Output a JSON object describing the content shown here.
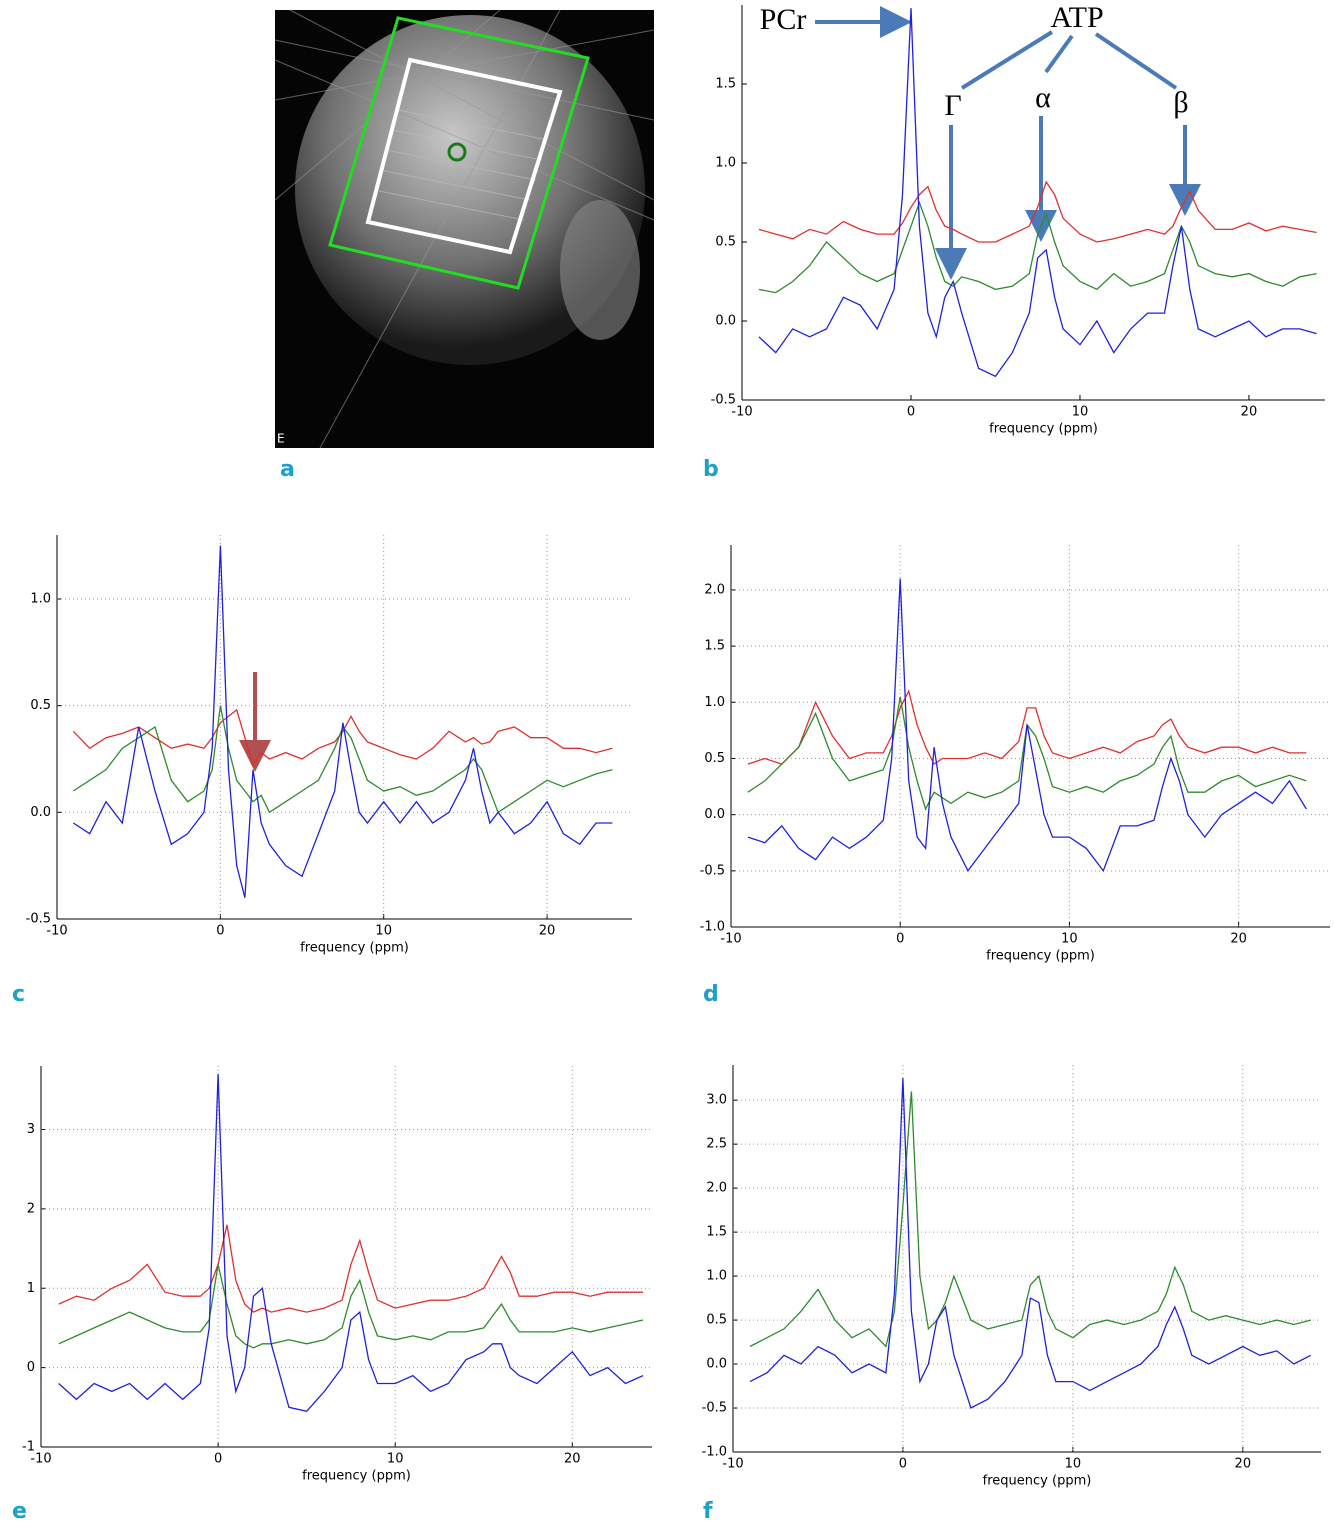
{
  "panel_labels": [
    "a",
    "b",
    "c",
    "d",
    "e",
    "f"
  ],
  "image_marker": "E",
  "chart_data": [
    {
      "type": "line",
      "xlabel": "frequency (ppm)",
      "xlim": [
        -10,
        24.5
      ],
      "ylim": [
        -0.5,
        2.0
      ],
      "xticks": [
        -10,
        0,
        10,
        20
      ],
      "yticks": [
        {
          "value": -0.5,
          "label": "-0.5"
        },
        {
          "value": 0,
          "label": "0.0"
        },
        {
          "value": 0.5,
          "label": "0.5"
        },
        {
          "value": 1,
          "label": "1.0"
        },
        {
          "value": 1.5,
          "label": "1.5"
        }
      ],
      "grid": false,
      "annotations": [
        "PCr",
        "ATP",
        "Γ",
        "α",
        "β"
      ],
      "x": [
        -9,
        -8,
        -7,
        -6,
        -5,
        -4,
        -3,
        -2,
        -1,
        -0.5,
        0,
        0.5,
        1,
        1.5,
        2,
        2.5,
        3,
        4,
        5,
        6,
        7,
        7.5,
        8,
        8.5,
        9,
        10,
        11,
        12,
        13,
        14,
        15,
        15.5,
        16,
        16.5,
        17,
        18,
        19,
        20,
        21,
        22,
        23,
        24
      ],
      "series": [
        {
          "color": "#e03030",
          "values": [
            0.58,
            0.55,
            0.52,
            0.58,
            0.55,
            0.63,
            0.58,
            0.55,
            0.55,
            0.62,
            0.72,
            0.8,
            0.85,
            0.7,
            0.6,
            0.58,
            0.55,
            0.5,
            0.5,
            0.55,
            0.6,
            0.72,
            0.88,
            0.8,
            0.65,
            0.55,
            0.5,
            0.52,
            0.55,
            0.58,
            0.55,
            0.6,
            0.72,
            0.82,
            0.7,
            0.58,
            0.58,
            0.62,
            0.57,
            0.6,
            0.58,
            0.56
          ]
        },
        {
          "color": "#2e8b2e",
          "values": [
            0.2,
            0.18,
            0.25,
            0.35,
            0.5,
            0.4,
            0.3,
            0.25,
            0.3,
            0.45,
            0.6,
            0.75,
            0.6,
            0.4,
            0.25,
            0.22,
            0.28,
            0.25,
            0.2,
            0.22,
            0.3,
            0.55,
            0.68,
            0.5,
            0.35,
            0.25,
            0.2,
            0.3,
            0.22,
            0.25,
            0.3,
            0.45,
            0.6,
            0.5,
            0.35,
            0.3,
            0.28,
            0.3,
            0.25,
            0.22,
            0.28,
            0.3
          ]
        },
        {
          "color": "#2020e0",
          "values": [
            -0.1,
            -0.2,
            -0.05,
            -0.1,
            -0.05,
            0.15,
            0.1,
            -0.05,
            0.2,
            0.8,
            1.98,
            0.6,
            0.05,
            -0.1,
            0.15,
            0.25,
            0.05,
            -0.3,
            -0.35,
            -0.2,
            0.05,
            0.4,
            0.45,
            0.15,
            -0.05,
            -0.15,
            0.0,
            -0.2,
            -0.05,
            0.05,
            0.05,
            0.35,
            0.6,
            0.2,
            -0.05,
            -0.1,
            -0.05,
            0.0,
            -0.1,
            -0.05,
            -0.05,
            -0.08
          ]
        }
      ]
    },
    {
      "type": "line",
      "xlabel": "frequency (ppm)",
      "xlim": [
        -10,
        25.2
      ],
      "ylim": [
        -0.5,
        1.3
      ],
      "xticks": [
        -10,
        0,
        10,
        20
      ],
      "yticks": [
        {
          "value": -0.5,
          "label": "-0.5"
        },
        {
          "value": 0,
          "label": "0.0"
        },
        {
          "value": 0.5,
          "label": "0.5"
        },
        {
          "value": 1,
          "label": "1.0"
        }
      ],
      "grid": true,
      "x": [
        -9,
        -8,
        -7,
        -6,
        -5,
        -4,
        -3,
        -2,
        -1,
        -0.5,
        0,
        0.5,
        1,
        1.5,
        2,
        2.5,
        3,
        4,
        5,
        6,
        7,
        7.5,
        8,
        8.5,
        9,
        10,
        11,
        12,
        13,
        14,
        15,
        15.5,
        16,
        16.5,
        17,
        18,
        19,
        20,
        21,
        22,
        23,
        24
      ],
      "series": [
        {
          "color": "#e03030",
          "values": [
            0.38,
            0.3,
            0.35,
            0.37,
            0.4,
            0.35,
            0.3,
            0.32,
            0.3,
            0.35,
            0.42,
            0.45,
            0.48,
            0.35,
            0.22,
            0.28,
            0.25,
            0.28,
            0.25,
            0.3,
            0.33,
            0.38,
            0.45,
            0.38,
            0.33,
            0.3,
            0.27,
            0.25,
            0.3,
            0.38,
            0.33,
            0.35,
            0.32,
            0.33,
            0.38,
            0.4,
            0.35,
            0.35,
            0.3,
            0.3,
            0.28,
            0.3
          ]
        },
        {
          "color": "#2e8b2e",
          "values": [
            0.1,
            0.15,
            0.2,
            0.3,
            0.35,
            0.4,
            0.15,
            0.05,
            0.1,
            0.2,
            0.5,
            0.3,
            0.15,
            0.1,
            0.05,
            0.08,
            0.0,
            0.05,
            0.1,
            0.15,
            0.3,
            0.4,
            0.35,
            0.25,
            0.15,
            0.1,
            0.12,
            0.08,
            0.1,
            0.15,
            0.2,
            0.25,
            0.2,
            0.1,
            0.0,
            0.05,
            0.1,
            0.15,
            0.12,
            0.15,
            0.18,
            0.2
          ]
        },
        {
          "color": "#2020e0",
          "values": [
            -0.05,
            -0.1,
            0.05,
            -0.05,
            0.4,
            0.1,
            -0.15,
            -0.1,
            0.0,
            0.3,
            1.25,
            0.2,
            -0.25,
            -0.4,
            0.2,
            -0.05,
            -0.15,
            -0.25,
            -0.3,
            -0.1,
            0.1,
            0.42,
            0.2,
            0.0,
            -0.05,
            0.05,
            -0.05,
            0.05,
            -0.05,
            0.0,
            0.15,
            0.3,
            0.1,
            -0.05,
            0.0,
            -0.1,
            -0.05,
            0.05,
            -0.1,
            -0.15,
            -0.05,
            -0.05
          ]
        }
      ]
    },
    {
      "type": "line",
      "xlabel": "frequency (ppm)",
      "xlim": [
        -10,
        25.4
      ],
      "ylim": [
        -1,
        2.4
      ],
      "xticks": [
        -10,
        0,
        10,
        20
      ],
      "yticks": [
        {
          "value": -1,
          "label": "-1.0"
        },
        {
          "value": -0.5,
          "label": "-0.5"
        },
        {
          "value": 0,
          "label": "0.0"
        },
        {
          "value": 0.5,
          "label": "0.5"
        },
        {
          "value": 1,
          "label": "1.0"
        },
        {
          "value": 1.5,
          "label": "1.5"
        },
        {
          "value": 2,
          "label": "2.0"
        }
      ],
      "grid": true,
      "x": [
        -9,
        -8,
        -7,
        -6,
        -5,
        -4,
        -3,
        -2,
        -1,
        -0.5,
        0,
        0.5,
        1,
        1.5,
        2,
        2.5,
        3,
        4,
        5,
        6,
        7,
        7.5,
        8,
        8.5,
        9,
        10,
        11,
        12,
        13,
        14,
        15,
        15.5,
        16,
        16.5,
        17,
        18,
        19,
        20,
        21,
        22,
        23,
        24
      ],
      "series": [
        {
          "color": "#e03030",
          "values": [
            0.45,
            0.5,
            0.45,
            0.6,
            1.0,
            0.7,
            0.5,
            0.55,
            0.55,
            0.7,
            0.95,
            1.1,
            0.8,
            0.6,
            0.45,
            0.5,
            0.5,
            0.5,
            0.55,
            0.5,
            0.65,
            0.95,
            0.95,
            0.7,
            0.55,
            0.5,
            0.55,
            0.6,
            0.55,
            0.65,
            0.7,
            0.8,
            0.85,
            0.7,
            0.6,
            0.55,
            0.6,
            0.6,
            0.55,
            0.6,
            0.55,
            0.55
          ]
        },
        {
          "color": "#2e8b2e",
          "values": [
            0.2,
            0.3,
            0.45,
            0.6,
            0.9,
            0.5,
            0.3,
            0.35,
            0.4,
            0.6,
            1.05,
            0.6,
            0.3,
            0.05,
            0.2,
            0.15,
            0.1,
            0.2,
            0.15,
            0.2,
            0.3,
            0.8,
            0.7,
            0.5,
            0.25,
            0.2,
            0.25,
            0.2,
            0.3,
            0.35,
            0.45,
            0.6,
            0.7,
            0.4,
            0.2,
            0.2,
            0.3,
            0.35,
            0.25,
            0.3,
            0.35,
            0.3
          ]
        },
        {
          "color": "#2020e0",
          "values": [
            -0.2,
            -0.25,
            -0.1,
            -0.3,
            -0.4,
            -0.2,
            -0.3,
            -0.2,
            -0.05,
            0.5,
            2.1,
            0.3,
            -0.2,
            -0.3,
            0.6,
            0.1,
            -0.2,
            -0.5,
            -0.3,
            -0.1,
            0.1,
            0.8,
            0.4,
            0.0,
            -0.2,
            -0.2,
            -0.3,
            -0.5,
            -0.1,
            -0.1,
            -0.05,
            0.25,
            0.5,
            0.3,
            0.0,
            -0.2,
            0.0,
            0.1,
            0.2,
            0.1,
            0.3,
            0.05
          ]
        }
      ]
    },
    {
      "type": "line",
      "xlabel": "frequency (ppm)",
      "xlim": [
        -10,
        24.5
      ],
      "ylim": [
        -1,
        3.8
      ],
      "xticks": [
        -10,
        0,
        10,
        20
      ],
      "yticks": [
        -1,
        0,
        1,
        2,
        3
      ],
      "grid": true,
      "x": [
        -9,
        -8,
        -7,
        -6,
        -5,
        -4,
        -3,
        -2,
        -1,
        -0.5,
        0,
        0.5,
        1,
        1.5,
        2,
        2.5,
        3,
        4,
        5,
        6,
        7,
        7.5,
        8,
        8.5,
        9,
        10,
        11,
        12,
        13,
        14,
        15,
        15.5,
        16,
        16.5,
        17,
        18,
        19,
        20,
        21,
        22,
        23,
        24
      ],
      "series": [
        {
          "color": "#e03030",
          "values": [
            0.8,
            0.9,
            0.85,
            1.0,
            1.1,
            1.3,
            0.95,
            0.9,
            0.9,
            1.0,
            1.3,
            1.8,
            1.1,
            0.8,
            0.7,
            0.75,
            0.7,
            0.75,
            0.7,
            0.75,
            0.85,
            1.3,
            1.6,
            1.2,
            0.85,
            0.75,
            0.8,
            0.85,
            0.85,
            0.9,
            1.0,
            1.2,
            1.4,
            1.2,
            0.9,
            0.9,
            0.95,
            0.95,
            0.9,
            0.95,
            0.95,
            0.95
          ]
        },
        {
          "color": "#2e8b2e",
          "values": [
            0.3,
            0.4,
            0.5,
            0.6,
            0.7,
            0.6,
            0.5,
            0.45,
            0.45,
            0.6,
            1.3,
            0.8,
            0.4,
            0.3,
            0.25,
            0.3,
            0.3,
            0.35,
            0.3,
            0.35,
            0.5,
            0.9,
            1.1,
            0.7,
            0.4,
            0.35,
            0.4,
            0.35,
            0.45,
            0.45,
            0.5,
            0.65,
            0.8,
            0.6,
            0.45,
            0.45,
            0.45,
            0.5,
            0.45,
            0.5,
            0.55,
            0.6
          ]
        },
        {
          "color": "#2020e0",
          "values": [
            -0.2,
            -0.4,
            -0.2,
            -0.3,
            -0.2,
            -0.4,
            -0.2,
            -0.4,
            -0.2,
            0.5,
            3.7,
            0.4,
            -0.3,
            0.0,
            0.9,
            1.0,
            0.3,
            -0.5,
            -0.55,
            -0.3,
            0.0,
            0.6,
            0.7,
            0.1,
            -0.2,
            -0.2,
            -0.1,
            -0.3,
            -0.2,
            0.1,
            0.2,
            0.3,
            0.3,
            0.0,
            -0.1,
            -0.2,
            0.0,
            0.2,
            -0.1,
            0.0,
            -0.2,
            -0.1
          ]
        }
      ]
    },
    {
      "type": "line",
      "xlabel": "frequency (ppm)",
      "xlim": [
        -10,
        24.6
      ],
      "ylim": [
        -1,
        3.4
      ],
      "xticks": [
        -10,
        0,
        10,
        20
      ],
      "yticks": [
        {
          "value": -1,
          "label": "-1.0"
        },
        {
          "value": -0.5,
          "label": "-0.5"
        },
        {
          "value": 0,
          "label": "0.0"
        },
        {
          "value": 0.5,
          "label": "0.5"
        },
        {
          "value": 1,
          "label": "1.0"
        },
        {
          "value": 1.5,
          "label": "1.5"
        },
        {
          "value": 2,
          "label": "2.0"
        },
        {
          "value": 2.5,
          "label": "2.5"
        },
        {
          "value": 3,
          "label": "3.0"
        }
      ],
      "grid": true,
      "x": [
        -9,
        -8,
        -7,
        -6,
        -5,
        -4,
        -3,
        -2,
        -1,
        -0.5,
        0,
        0.5,
        1,
        1.5,
        2,
        2.5,
        3,
        4,
        5,
        6,
        7,
        7.5,
        8,
        8.5,
        9,
        10,
        11,
        12,
        13,
        14,
        15,
        15.5,
        16,
        16.5,
        17,
        18,
        19,
        20,
        21,
        22,
        23,
        24
      ],
      "series": [
        {
          "color": "#2e8b2e",
          "values": [
            0.2,
            0.3,
            0.4,
            0.6,
            0.85,
            0.5,
            0.3,
            0.4,
            0.2,
            0.6,
            1.8,
            3.1,
            1.0,
            0.4,
            0.5,
            0.7,
            1.0,
            0.5,
            0.4,
            0.45,
            0.5,
            0.9,
            1.0,
            0.6,
            0.4,
            0.3,
            0.45,
            0.5,
            0.45,
            0.5,
            0.6,
            0.8,
            1.1,
            0.9,
            0.6,
            0.5,
            0.55,
            0.5,
            0.45,
            0.5,
            0.45,
            0.5
          ]
        },
        {
          "color": "#2020e0",
          "values": [
            -0.2,
            -0.1,
            0.1,
            0.0,
            0.2,
            0.1,
            -0.1,
            0.0,
            -0.1,
            0.8,
            3.25,
            0.6,
            -0.2,
            0.0,
            0.5,
            0.65,
            0.1,
            -0.5,
            -0.4,
            -0.2,
            0.1,
            0.75,
            0.7,
            0.1,
            -0.2,
            -0.2,
            -0.3,
            -0.2,
            -0.1,
            0.0,
            0.2,
            0.45,
            0.65,
            0.4,
            0.1,
            0.0,
            0.1,
            0.2,
            0.1,
            0.15,
            0.0,
            0.1
          ]
        }
      ]
    }
  ]
}
